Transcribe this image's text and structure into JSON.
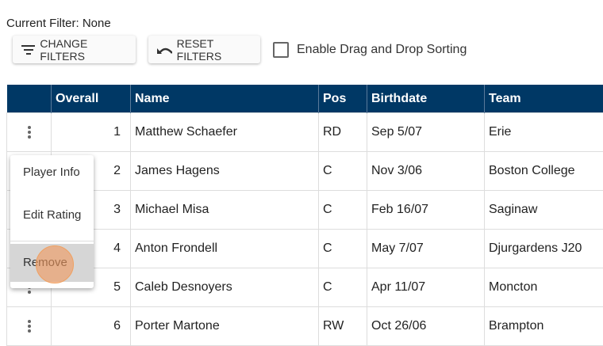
{
  "filter_label": "Current Filter: None",
  "toolbar": {
    "change_filters": "CHANGE FILTERS",
    "reset_filters": "RESET FILTERS",
    "drag_drop_label": "Enable Drag and Drop Sorting",
    "drag_drop_checked": false
  },
  "table": {
    "headers": [
      "",
      "Overall",
      "Name",
      "Pos",
      "Birthdate",
      "Team"
    ],
    "rows": [
      [
        "1",
        "Matthew Schaefer",
        "RD",
        "Sep 5/07",
        "Erie"
      ],
      [
        "2",
        "James Hagens",
        "C",
        "Nov 3/06",
        "Boston College"
      ],
      [
        "3",
        "Michael Misa",
        "C",
        "Feb 16/07",
        "Saginaw"
      ],
      [
        "4",
        "Anton Frondell",
        "C",
        "May 7/07",
        "Djurgardens J20"
      ],
      [
        "5",
        "Caleb Desnoyers",
        "C",
        "Apr 11/07",
        "Moncton"
      ],
      [
        "6",
        "Porter Martone",
        "RW",
        "Oct 26/06",
        "Brampton"
      ]
    ]
  },
  "menu": {
    "items": [
      "Player Info",
      "Edit Rating",
      "Remove"
    ],
    "highlighted": "Remove"
  },
  "colors": {
    "header_bg": "#003865",
    "cursor": "#f0965a"
  }
}
